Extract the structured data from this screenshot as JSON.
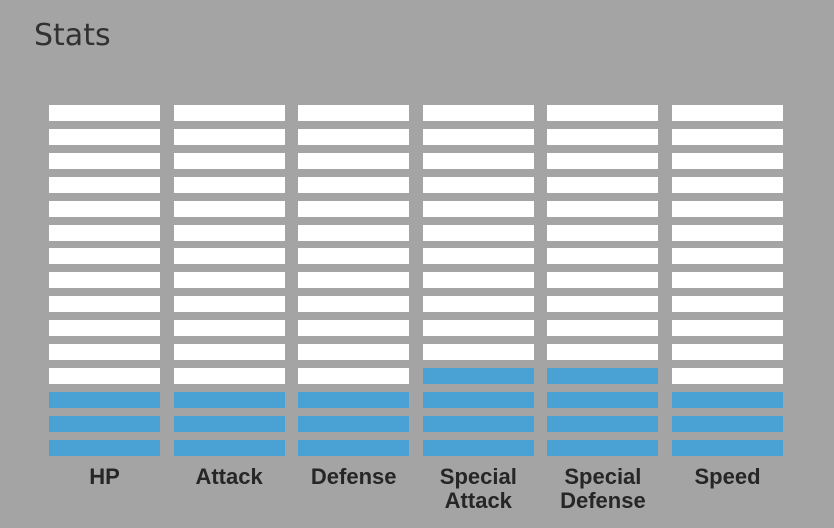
{
  "header": {
    "title": "Stats"
  },
  "stats": {
    "total_segments": 15,
    "colors": {
      "background": "#a4a4a4",
      "segment_empty": "#ffffff",
      "segment_filled": "#4aa2d4",
      "text": "#262626"
    },
    "items": [
      {
        "name": "hp",
        "label": "HP",
        "filled": 3
      },
      {
        "name": "attack",
        "label": "Attack",
        "filled": 3
      },
      {
        "name": "defense",
        "label": "Defense",
        "filled": 3
      },
      {
        "name": "special-attack",
        "label": "Special\nAttack",
        "filled": 4
      },
      {
        "name": "special-defense",
        "label": "Special\nDefense",
        "filled": 4
      },
      {
        "name": "speed",
        "label": "Speed",
        "filled": 3
      }
    ]
  }
}
